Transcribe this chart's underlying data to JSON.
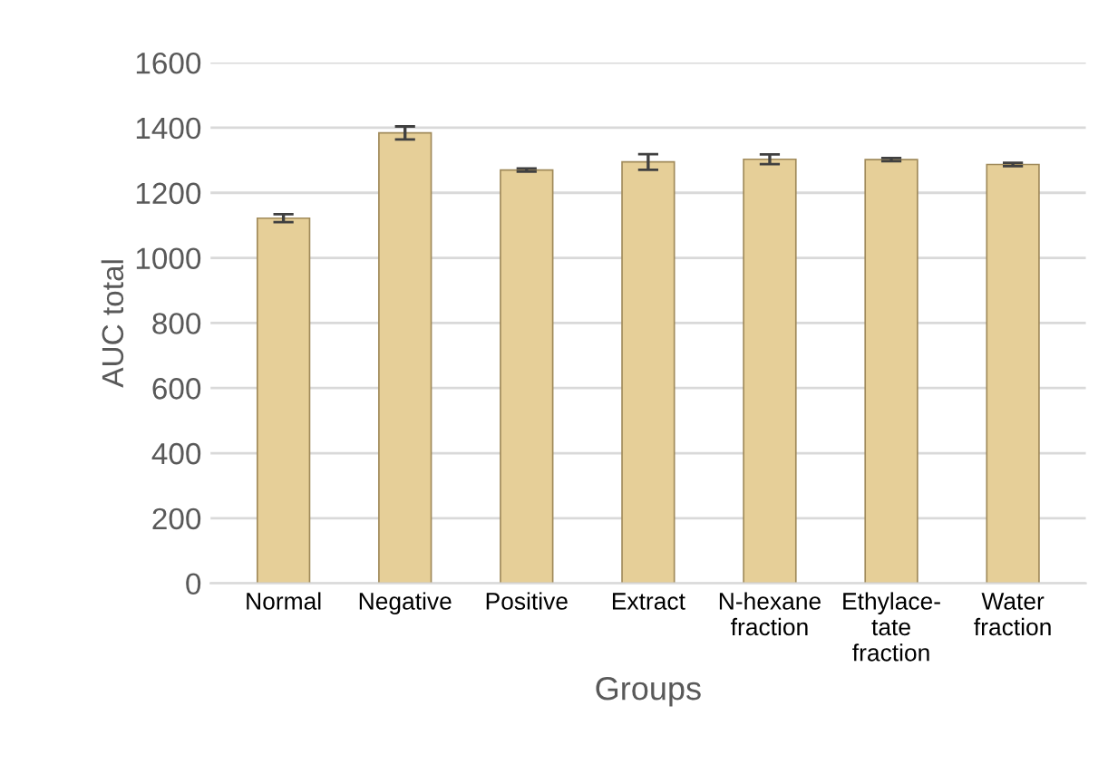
{
  "chart_data": {
    "type": "bar",
    "xlabel": "Groups",
    "ylabel": "AUC total",
    "categories": [
      "Normal",
      "Negative",
      "Positive",
      "Extract",
      "N-hexane\nfraction",
      "Ethylace-\ntate\nfraction",
      "Water\nfraction"
    ],
    "values": [
      1122,
      1384,
      1270,
      1295,
      1303,
      1302,
      1287
    ],
    "errors": [
      12,
      20,
      5,
      24,
      15,
      5,
      5
    ],
    "color": "#e6cf98",
    "ylim": [
      0,
      1600
    ],
    "yticks": [
      0,
      200,
      400,
      600,
      800,
      1000,
      1200,
      1400,
      1600
    ],
    "grid": "y"
  }
}
